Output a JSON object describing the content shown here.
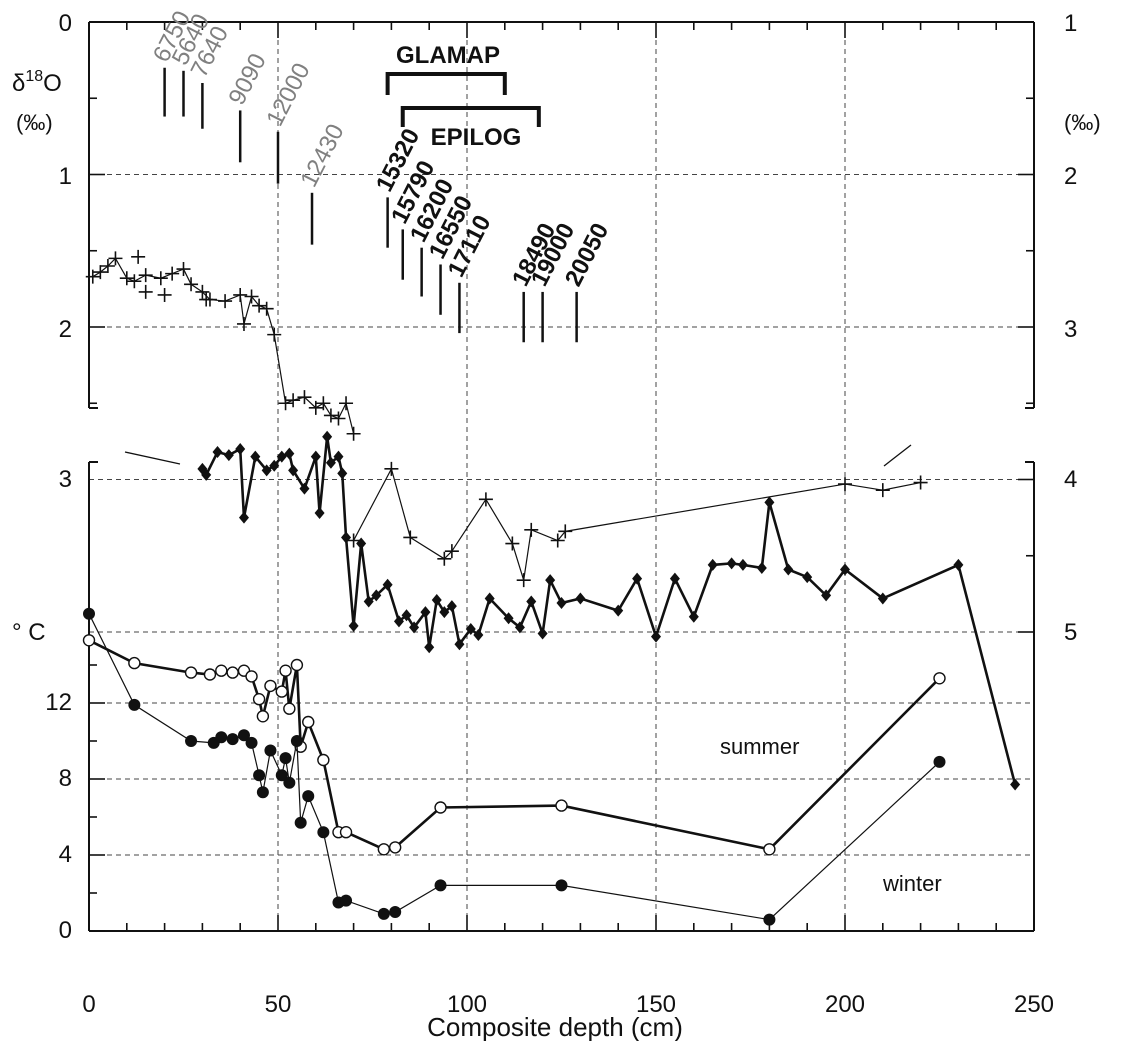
{
  "chart_data": {
    "type": "line",
    "x_axis": {
      "label": "Composite depth (cm)",
      "range": [
        0,
        250
      ],
      "ticks": [
        0,
        50,
        100,
        150,
        200,
        250
      ]
    },
    "left_axis_d18o": {
      "symbol": "δ",
      "superscript": "18",
      "letter": "O",
      "unit": "(‰)",
      "reversed": true,
      "range": [
        0,
        2.5
      ],
      "tick_labels": [
        "0",
        "1",
        "2",
        "3"
      ]
    },
    "right_axis_d18o": {
      "unit": "(‰)",
      "reversed": true,
      "range": [
        1,
        5
      ],
      "tick_labels": [
        "1",
        "2",
        "3",
        "4",
        "5"
      ]
    },
    "temperature_axis": {
      "unit": "° C",
      "range": [
        0,
        14
      ],
      "tick_labels": [
        "0",
        "4",
        "8",
        "12"
      ]
    },
    "labels": {
      "glamap": "GLAMAP",
      "epilog": "EPILOG",
      "summer": "summer",
      "winter": "winter"
    },
    "brackets": {
      "glamap": [
        79,
        110
      ],
      "epilog": [
        83,
        119
      ]
    },
    "ages_gray": [
      {
        "label": "6750",
        "x": 20,
        "y_top": 1.62,
        "y_bot": 1.3
      },
      {
        "label": "5640",
        "x": 25,
        "y_top": 1.62,
        "y_bot": 1.32
      },
      {
        "label": "7640",
        "x": 30,
        "y_top": 1.7,
        "y_bot": 1.4
      },
      {
        "label": "9090",
        "x": 40,
        "y_top": 1.92,
        "y_bot": 1.58
      },
      {
        "label": "12000",
        "x": 50,
        "y_top": 2.06,
        "y_bot": 1.72
      },
      {
        "label": "12430",
        "x": 59,
        "y_top": 2.46,
        "y_bot": 2.12
      }
    ],
    "ages_black": [
      {
        "label": "15320",
        "x": 79,
        "y_top": 2.48,
        "y_bot": 2.15
      },
      {
        "label": "15790",
        "x": 83,
        "y_top": 2.69,
        "y_bot": 2.36
      },
      {
        "label": "16200",
        "x": 88,
        "y_top": 2.8,
        "y_bot": 2.48
      },
      {
        "label": "16550",
        "x": 93,
        "y_top": 2.92,
        "y_bot": 2.59
      },
      {
        "label": "17110",
        "x": 98,
        "y_top": 3.04,
        "y_bot": 2.71
      },
      {
        "label": "18490",
        "x": 115,
        "y_top": 3.1,
        "y_bot": 2.77
      },
      {
        "label": "19000",
        "x": 120,
        "y_top": 3.1,
        "y_bot": 2.77
      },
      {
        "label": "20050",
        "x": 129,
        "y_top": 3.1,
        "y_bot": 2.77
      }
    ],
    "series": [
      {
        "axis": "left_d18o",
        "marker": "plus",
        "points": [
          [
            1,
            1.67
          ],
          [
            3,
            1.64
          ],
          [
            5,
            1.6
          ],
          [
            7,
            1.55
          ],
          [
            10,
            1.68
          ],
          [
            12,
            1.7
          ],
          [
            15,
            1.66
          ],
          [
            19,
            1.68
          ],
          [
            22,
            1.65
          ],
          [
            25,
            1.62
          ],
          [
            27,
            1.72
          ],
          [
            30,
            1.77
          ],
          [
            32,
            1.82
          ],
          [
            36,
            1.83
          ],
          [
            40,
            1.79
          ],
          [
            41,
            1.98
          ],
          [
            43,
            1.8
          ],
          [
            45,
            1.86
          ],
          [
            47,
            1.88
          ],
          [
            49,
            2.05
          ],
          [
            52,
            2.5
          ],
          [
            54,
            2.48
          ],
          [
            57,
            2.46
          ],
          [
            60,
            2.53
          ],
          [
            62,
            2.5
          ],
          [
            64,
            2.58
          ],
          [
            66,
            2.6
          ],
          [
            68,
            2.5
          ],
          [
            70,
            2.7
          ]
        ]
      },
      {
        "axis": "left_d18o",
        "marker": "plus",
        "points": [
          [
            13,
            1.54
          ],
          [
            15,
            1.77
          ],
          [
            20,
            1.79
          ],
          [
            31,
            1.82
          ]
        ]
      },
      {
        "axis": "right_d18o",
        "marker": "plus",
        "points": [
          [
            70,
            4.4
          ],
          [
            80,
            3.93
          ],
          [
            85,
            4.38
          ],
          [
            94,
            4.52
          ],
          [
            96,
            4.47
          ],
          [
            105,
            4.13
          ],
          [
            112,
            4.42
          ],
          [
            115,
            4.66
          ],
          [
            117,
            4.33
          ],
          [
            124,
            4.4
          ],
          [
            126,
            4.34
          ],
          [
            200,
            4.03
          ],
          [
            210,
            4.07
          ],
          [
            220,
            4.02
          ]
        ]
      },
      {
        "axis": "right_d18o",
        "marker": "diamond",
        "points": [
          [
            30,
            3.93
          ],
          [
            31,
            3.97
          ],
          [
            34,
            3.82
          ],
          [
            37,
            3.84
          ],
          [
            40,
            3.8
          ],
          [
            41,
            4.25
          ],
          [
            44,
            3.85
          ],
          [
            47,
            3.94
          ],
          [
            49,
            3.91
          ],
          [
            51,
            3.85
          ],
          [
            53,
            3.83
          ],
          [
            54,
            3.94
          ],
          [
            57,
            4.06
          ],
          [
            60,
            3.85
          ],
          [
            61,
            4.22
          ],
          [
            63,
            3.72
          ],
          [
            64,
            3.89
          ],
          [
            66,
            3.85
          ],
          [
            67,
            3.96
          ],
          [
            68,
            4.38
          ],
          [
            70,
            4.96
          ],
          [
            72,
            4.42
          ],
          [
            74,
            4.8
          ],
          [
            76,
            4.76
          ],
          [
            79,
            4.69
          ],
          [
            82,
            4.93
          ],
          [
            84,
            4.89
          ],
          [
            86,
            4.97
          ],
          [
            89,
            4.87
          ],
          [
            90,
            5.1
          ],
          [
            92,
            4.79
          ],
          [
            94,
            4.87
          ],
          [
            96,
            4.83
          ],
          [
            98,
            5.08
          ],
          [
            101,
            4.98
          ],
          [
            103,
            5.02
          ],
          [
            106,
            4.78
          ],
          [
            111,
            4.91
          ],
          [
            114,
            4.97
          ],
          [
            117,
            4.8
          ],
          [
            120,
            5.01
          ],
          [
            122,
            4.66
          ],
          [
            125,
            4.81
          ],
          [
            130,
            4.78
          ],
          [
            140,
            4.86
          ],
          [
            145,
            4.65
          ],
          [
            150,
            5.03
          ],
          [
            155,
            4.65
          ],
          [
            160,
            4.9
          ],
          [
            165,
            4.56
          ],
          [
            170,
            4.55
          ],
          [
            173,
            4.56
          ],
          [
            178,
            4.58
          ],
          [
            180,
            4.15
          ],
          [
            185,
            4.59
          ],
          [
            190,
            4.64
          ],
          [
            195,
            4.76
          ],
          [
            200,
            4.59
          ],
          [
            210,
            4.78
          ],
          [
            230,
            4.56
          ],
          [
            245,
            6.0
          ]
        ]
      },
      {
        "name": "summer",
        "axis": "temperature",
        "marker": "open-circle",
        "points": [
          [
            0,
            15.3
          ],
          [
            12,
            14.1
          ],
          [
            27,
            13.6
          ],
          [
            32,
            13.5
          ],
          [
            35,
            13.7
          ],
          [
            38,
            13.6
          ],
          [
            41,
            13.7
          ],
          [
            43,
            13.4
          ],
          [
            45,
            12.2
          ],
          [
            46,
            11.3
          ],
          [
            48,
            12.9
          ],
          [
            51,
            12.6
          ],
          [
            52,
            13.7
          ],
          [
            53,
            11.7
          ],
          [
            55,
            14.0
          ],
          [
            56,
            9.7
          ],
          [
            58,
            11.0
          ],
          [
            62,
            9.0
          ],
          [
            66,
            5.2
          ],
          [
            68,
            5.2
          ],
          [
            78,
            4.3
          ],
          [
            81,
            4.4
          ],
          [
            93,
            6.5
          ],
          [
            125,
            6.6
          ],
          [
            180,
            4.3
          ],
          [
            225,
            13.3
          ]
        ]
      },
      {
        "name": "winter",
        "axis": "temperature",
        "marker": "filled-circle",
        "points": [
          [
            0,
            16.7
          ],
          [
            12,
            11.9
          ],
          [
            27,
            10.0
          ],
          [
            33,
            9.9
          ],
          [
            35,
            10.2
          ],
          [
            38,
            10.1
          ],
          [
            41,
            10.3
          ],
          [
            43,
            9.9
          ],
          [
            45,
            8.2
          ],
          [
            46,
            7.3
          ],
          [
            48,
            9.5
          ],
          [
            51,
            8.2
          ],
          [
            52,
            9.1
          ],
          [
            53,
            7.8
          ],
          [
            55,
            10.0
          ],
          [
            56,
            5.7
          ],
          [
            58,
            7.1
          ],
          [
            62,
            5.2
          ],
          [
            66,
            1.5
          ],
          [
            68,
            1.6
          ],
          [
            78,
            0.9
          ],
          [
            81,
            1.0
          ],
          [
            93,
            2.4
          ],
          [
            125,
            2.4
          ],
          [
            180,
            0.6
          ],
          [
            225,
            8.9
          ]
        ]
      }
    ]
  }
}
